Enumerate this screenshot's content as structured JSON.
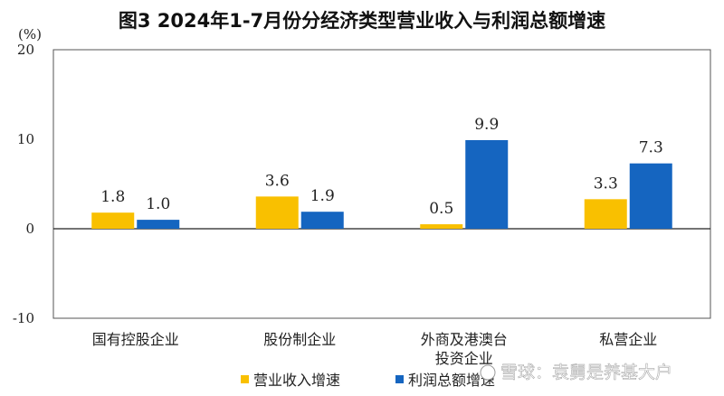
{
  "chart_data": {
    "type": "bar",
    "title": "图3 2024年1-7月份分经济类型营业收入与利润总额增速",
    "ylabel": "(%)",
    "xlabel": "",
    "ylim": [
      -10,
      20
    ],
    "yticks": [
      20,
      10,
      0,
      -10
    ],
    "grid": false,
    "legend_position": "bottom",
    "categories": [
      [
        "国有控股企业"
      ],
      [
        "股份制企业"
      ],
      [
        "外商及港澳台",
        "投资企业"
      ],
      [
        "私营企业"
      ]
    ],
    "series": [
      {
        "name": "营业收入增速",
        "color": "#f9c000",
        "values": [
          1.8,
          3.6,
          0.5,
          3.3
        ],
        "labels": [
          "1.8",
          "3.6",
          "0.5",
          "3.3"
        ]
      },
      {
        "name": "利润总额增速",
        "color": "#1565c0",
        "values": [
          1.0,
          1.9,
          9.9,
          7.3
        ],
        "labels": [
          "1.0",
          "1.9",
          "9.9",
          "7.3"
        ]
      }
    ]
  },
  "watermark": "雪球：袁舅是养基大户",
  "watermark_icon": "snowball-logo-icon"
}
